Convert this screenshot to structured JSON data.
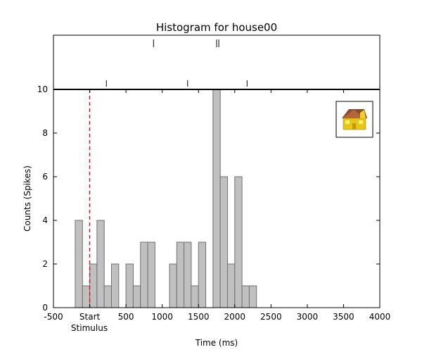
{
  "chart_data": {
    "type": "bar",
    "title": "Histogram for house00",
    "xlabel": "Time (ms)",
    "ylabel": "Counts (Spikes)",
    "xlim": [
      -500,
      4000
    ],
    "ylim": [
      0,
      10
    ],
    "x_ticks": [
      -500,
      0,
      500,
      1000,
      1500,
      2000,
      2500,
      3000,
      3500,
      4000
    ],
    "x_tick_labels": [
      "-500",
      "Start",
      "500",
      "1000",
      "1500",
      "2000",
      "2500",
      "3000",
      "3500",
      "4000"
    ],
    "x_tick_sublabel": "Stimulus",
    "y_ticks": [
      0,
      2,
      4,
      6,
      8,
      10
    ],
    "bin_width": 100,
    "bin_starts": [
      -200,
      -100,
      0,
      100,
      200,
      300,
      400,
      500,
      600,
      700,
      800,
      900,
      1000,
      1100,
      1200,
      1300,
      1400,
      1500,
      1600,
      1700,
      1800,
      1900,
      2000,
      2100,
      2200
    ],
    "counts": [
      4,
      1,
      2,
      4,
      1,
      2,
      0,
      2,
      1,
      3,
      3,
      0,
      0,
      2,
      3,
      3,
      1,
      3,
      0,
      10,
      6,
      2,
      6,
      1,
      1
    ],
    "stimulus_onset": 0,
    "stimulus_line_color": "#ff0000",
    "bar_color": "#c0c0c0",
    "bar_edge_color": "#707070",
    "raster_rows": [
      [
        880,
        1750,
        1780
      ],
      [
        230,
        1350,
        2170
      ]
    ],
    "inset_icon": "house-icon"
  }
}
